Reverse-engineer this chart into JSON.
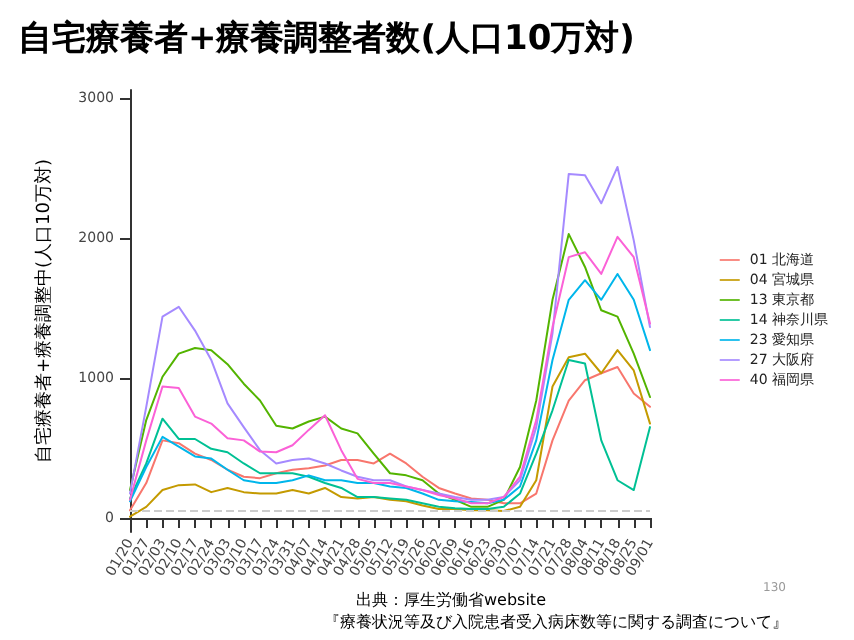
{
  "chart_data": {
    "type": "line",
    "title": "自宅療養者+療養調整者数(人口10万対)",
    "ylabel": "自宅療養者+療養調整中(人口10万対)",
    "categories": [
      "01/20",
      "01/27",
      "02/03",
      "02/10",
      "02/17",
      "02/24",
      "03/03",
      "03/10",
      "03/17",
      "03/24",
      "03/31",
      "04/07",
      "04/14",
      "04/21",
      "04/28",
      "05/05",
      "05/12",
      "05/19",
      "05/26",
      "06/02",
      "06/09",
      "06/16",
      "06/23",
      "06/30",
      "07/07",
      "07/14",
      "07/21",
      "07/28",
      "08/04",
      "08/11",
      "08/18",
      "08/25",
      "09/01"
    ],
    "series": [
      {
        "name": "01 北海道",
        "color": "#f8766d",
        "values": [
          55,
          250,
          555,
          535,
          460,
          415,
          345,
          295,
          285,
          320,
          345,
          355,
          375,
          415,
          415,
          390,
          460,
          390,
          295,
          215,
          175,
          140,
          130,
          105,
          105,
          175,
          555,
          840,
          985,
          1035,
          1080,
          890,
          795
        ]
      },
      {
        "name": "04 宮城県",
        "color": "#c49a00",
        "values": [
          10,
          80,
          200,
          235,
          240,
          185,
          215,
          185,
          175,
          175,
          200,
          175,
          215,
          150,
          140,
          150,
          130,
          120,
          90,
          65,
          65,
          55,
          55,
          50,
          80,
          270,
          940,
          1150,
          1175,
          1035,
          1200,
          1055,
          675
        ]
      },
      {
        "name": "13 東京都",
        "color": "#53b400",
        "values": [
          200,
          700,
          1010,
          1175,
          1215,
          1200,
          1100,
          960,
          840,
          660,
          640,
          690,
          725,
          640,
          605,
          460,
          320,
          305,
          270,
          175,
          130,
          80,
          80,
          130,
          365,
          840,
          1560,
          2030,
          1795,
          1485,
          1440,
          1175,
          865
        ]
      },
      {
        "name": "14 神奈川県",
        "color": "#00c094",
        "values": [
          140,
          390,
          710,
          565,
          565,
          495,
          470,
          390,
          320,
          320,
          320,
          295,
          250,
          215,
          150,
          150,
          140,
          130,
          105,
          80,
          70,
          65,
          65,
          80,
          175,
          460,
          770,
          1130,
          1105,
          555,
          270,
          200,
          650
        ]
      },
      {
        "name": "23 愛知県",
        "color": "#00b6eb",
        "values": [
          120,
          365,
          580,
          510,
          440,
          425,
          345,
          270,
          250,
          250,
          270,
          305,
          270,
          270,
          250,
          250,
          225,
          215,
          175,
          130,
          120,
          115,
          105,
          130,
          225,
          555,
          1130,
          1560,
          1700,
          1560,
          1745,
          1560,
          1200
        ]
      },
      {
        "name": "27 大阪府",
        "color": "#a58aff",
        "values": [
          176,
          795,
          1440,
          1510,
          1340,
          1130,
          820,
          650,
          485,
          390,
          415,
          425,
          390,
          340,
          295,
          270,
          270,
          225,
          200,
          175,
          150,
          130,
          130,
          150,
          270,
          650,
          1320,
          2460,
          2450,
          2250,
          2510,
          1985,
          1365
        ]
      },
      {
        "name": "40 福岡県",
        "color": "#fb61d7",
        "values": [
          130,
          555,
          940,
          930,
          725,
          675,
          570,
          555,
          475,
          470,
          520,
          630,
          735,
          485,
          280,
          250,
          250,
          225,
          200,
          165,
          140,
          105,
          105,
          150,
          295,
          700,
          1365,
          1865,
          1900,
          1745,
          2010,
          1865,
          1390
        ]
      }
    ],
    "ylim": [
      -100,
      3060
    ],
    "yticks": [
      0,
      1000,
      2000,
      3000
    ],
    "grid": false,
    "legend": "right",
    "marker": "none",
    "line_style": "solid",
    "ref_lines": [
      {
        "axis": "y",
        "value": 50,
        "color": "#cccccc",
        "line_style": "dashed"
      }
    ],
    "annotations": [
      "130",
      "出典：厚生労働省website",
      "『療養状況等及び入院患者受入病床数等に関する調査について』"
    ]
  }
}
